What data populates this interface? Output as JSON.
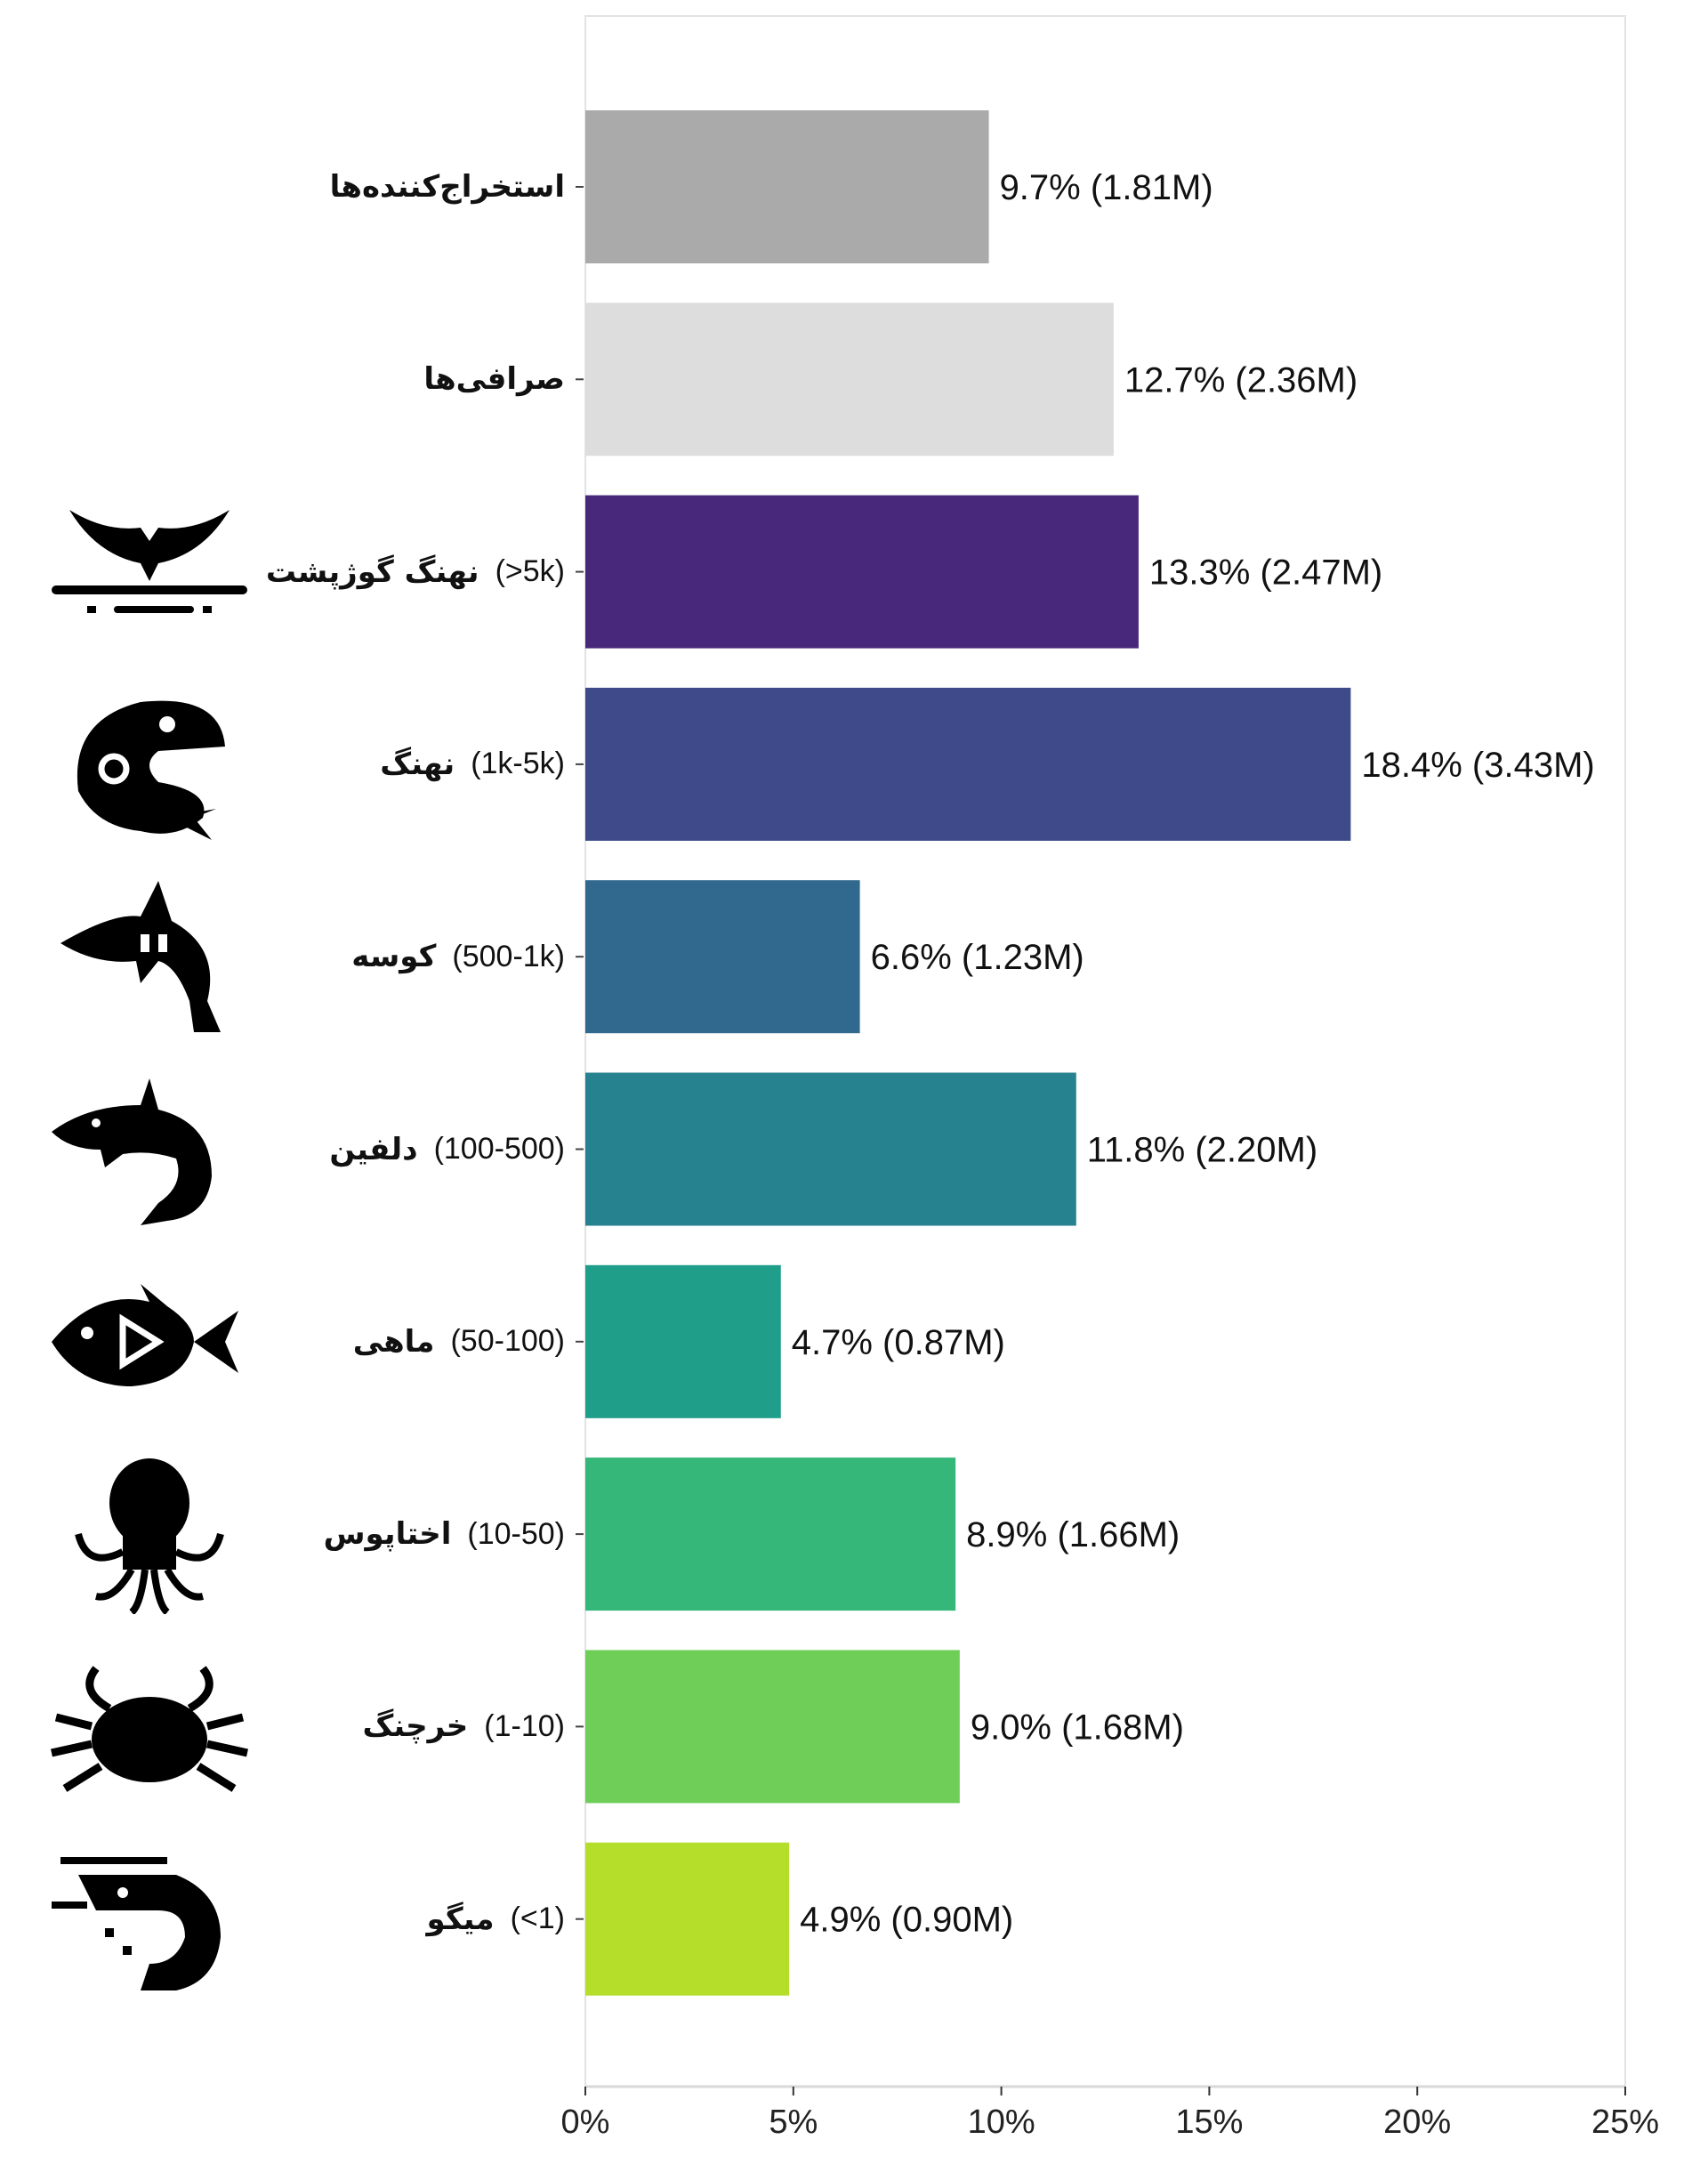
{
  "chart_data": {
    "type": "bar",
    "orientation": "horizontal",
    "categories": [
      {
        "name": "استخراج‌کننده‌ها",
        "range": "",
        "icon": ""
      },
      {
        "name": "صرافی‌ها",
        "range": "",
        "icon": ""
      },
      {
        "name": "نهنگ گوژپشت",
        "range": "(>5k)",
        "icon": "humpback-whale-tail-icon"
      },
      {
        "name": "نهنگ",
        "range": "(1k-5k)",
        "icon": "whale-icon"
      },
      {
        "name": "کوسه",
        "range": "(500-1k)",
        "icon": "shark-icon"
      },
      {
        "name": "دلفین",
        "range": "(100-500)",
        "icon": "dolphin-icon"
      },
      {
        "name": "ماهی",
        "range": "(50-100)",
        "icon": "fish-icon"
      },
      {
        "name": "اختاپوس",
        "range": "(10-50)",
        "icon": "octopus-icon"
      },
      {
        "name": "خرچنگ",
        "range": "(1-10)",
        "icon": "crab-icon"
      },
      {
        "name": "میگو",
        "range": "(<1)",
        "icon": "shrimp-icon"
      }
    ],
    "values": [
      9.7,
      12.7,
      13.3,
      18.4,
      6.6,
      11.8,
      4.7,
      8.9,
      9.0,
      4.9
    ],
    "data_labels": [
      "9.7% (1.81M)",
      "12.7% (2.36M)",
      "13.3% (2.47M)",
      "18.4% (3.43M)",
      "6.6% (1.23M)",
      "11.8% (2.20M)",
      "4.7% (0.87M)",
      "8.9% (1.66M)",
      "9.0% (1.68M)",
      "4.9% (0.90M)"
    ],
    "colors": [
      "#aaaaaa",
      "#dddddd",
      "#48287a",
      "#3e4a89",
      "#31688e",
      "#26828e",
      "#1f9e89",
      "#35b779",
      "#6ece58",
      "#b5de2b"
    ],
    "xlim": [
      0,
      25
    ],
    "xticks": [
      "0%",
      "5%",
      "10%",
      "15%",
      "20%",
      "25%"
    ],
    "xtick_values": [
      0,
      5,
      10,
      15,
      20,
      25
    ],
    "xlabel": "",
    "ylabel": "",
    "title": "",
    "grid": false
  }
}
